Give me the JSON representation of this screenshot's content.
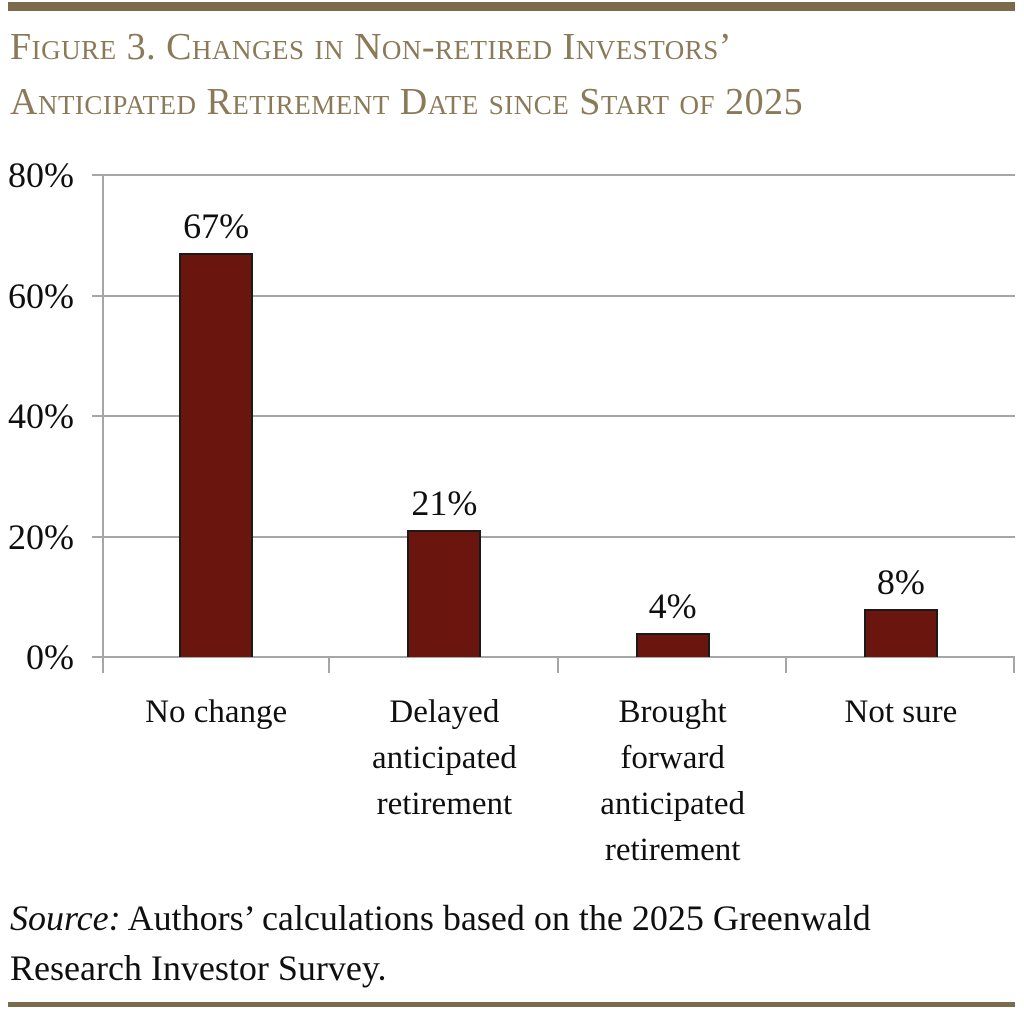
{
  "page": {
    "title": "Figure 3. Changes in Non-retired Investors’\nAnticipated Retirement Date since Start of 2025",
    "source": {
      "prefix": "Source:",
      "text": " Authors’ calculations based on the 2025 Greenwald\nResearch Investor Survey."
    }
  },
  "chart_data": {
    "type": "bar",
    "title": "Figure 3. Changes in Non-retired Investors’ Anticipated Retirement Date since Start of 2025",
    "categories": [
      "No change",
      "Delayed anticipated retirement",
      "Brought forward anticipated retirement",
      "Not sure"
    ],
    "categories_display": [
      "No change",
      "Delayed\nanticipated\nretirement",
      "Brought\nforward\nanticipated\nretirement",
      "Not sure"
    ],
    "values": [
      67,
      21,
      4,
      8
    ],
    "value_labels": [
      "67%",
      "21%",
      "4%",
      "8%"
    ],
    "xlabel": "",
    "ylabel": "",
    "ylim": [
      0,
      80
    ],
    "yticks": [
      0,
      20,
      40,
      60,
      80
    ],
    "ytick_labels": [
      "0%",
      "20%",
      "40%",
      "60%",
      "80%"
    ],
    "grid": true,
    "legend": false,
    "colors": {
      "bar_fill": "#6a150e",
      "bar_border": "#1a1a1a",
      "gridline": "#a6a6a6",
      "title": "#8a7a58",
      "rule": "#7b6b4a",
      "text": "#0f0f0f"
    }
  }
}
